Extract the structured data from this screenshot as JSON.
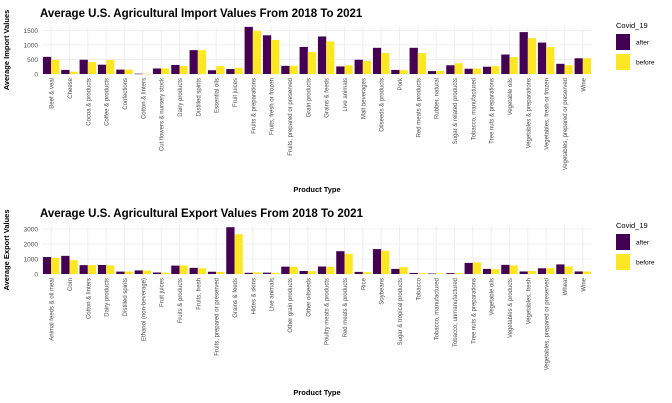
{
  "chart_data": [
    {
      "type": "bar",
      "title": "Average U.S. Agricultural Import Values From 2018 To 2021",
      "xlabel": "Product Type",
      "ylabel": "Average Import Values",
      "ylim": [
        0,
        1650
      ],
      "yticks": [
        0,
        500,
        1000,
        1500
      ],
      "grid": true,
      "legend": {
        "title": "Covid_19",
        "position": "right"
      },
      "categories": [
        "Beef & veal",
        "Cheese",
        "Cocoa & products",
        "Coffee & products",
        "Confections",
        "Cotton & linters",
        "Cut flowers & nursery stock",
        "Dairy products",
        "Distilled spirits",
        "Essential oils",
        "Fruit juices",
        "Fruits & preparations",
        "Fruits, fresh or frozen",
        "Fruits, prepared or preserved",
        "Grain products",
        "Grains & feeds",
        "Live animals",
        "Malt beverages",
        "Oilseeds & products",
        "Pork",
        "Red meats & products",
        "Rubber, natural",
        "Sugar & related products",
        "Tobacco, manufactured",
        "Tree nuts & preparations",
        "Vegetable oils",
        "Vegetables & preparations",
        "Vegetables, fresh or frozen",
        "Vegetables, prepared or preserved",
        "Wine"
      ],
      "series": [
        {
          "name": "after",
          "color": "#440154",
          "values": [
            590,
            140,
            490,
            320,
            150,
            10,
            190,
            310,
            820,
            130,
            170,
            1620,
            1330,
            280,
            930,
            1290,
            260,
            490,
            900,
            140,
            900,
            100,
            300,
            180,
            250,
            670,
            1440,
            1080,
            350,
            540
          ]
        },
        {
          "name": "before",
          "color": "#FDE725",
          "values": [
            490,
            80,
            410,
            480,
            150,
            10,
            190,
            270,
            820,
            270,
            210,
            1480,
            1170,
            280,
            750,
            1120,
            300,
            450,
            720,
            130,
            720,
            110,
            370,
            190,
            270,
            580,
            1230,
            930,
            300,
            540
          ]
        }
      ]
    },
    {
      "type": "bar",
      "title": "Average U.S. Agricultural Export Values From 2018 To 2021",
      "xlabel": "Product Type",
      "ylabel": "Average Export Values",
      "ylim": [
        0,
        3200
      ],
      "yticks": [
        0,
        1000,
        2000,
        3000
      ],
      "grid": true,
      "legend": {
        "title": "Covid_19",
        "position": "right"
      },
      "categories": [
        "Animal feeds & oil meal",
        "Corn",
        "Cotton & linters",
        "Dairy products",
        "Distilled spirits",
        "Ethanol (non-beverage)",
        "Fruit juices",
        "Fruits & products",
        "Fruits, fresh",
        "Fruits, prepared or preserved",
        "Grains & feeds",
        "Hides & skins",
        "Live animals",
        "Other grain products",
        "Other oilseeds",
        "Poultry meats & products",
        "Red meats & products",
        "Rice",
        "Soybeans",
        "Sugar & tropical products",
        "Tobacco",
        "Tobacco, manufactured",
        "Tobacco, unmanufactured",
        "Tree nuts & preparations",
        "Vegetable oils",
        "Vegetables & products",
        "Vegetables, fresh",
        "Vegetables, prepared or preserved",
        "Wheat",
        "Wine"
      ],
      "series": [
        {
          "name": "after",
          "color": "#440154",
          "values": [
            1130,
            1210,
            590,
            600,
            160,
            240,
            100,
            560,
            410,
            150,
            3120,
            80,
            90,
            490,
            200,
            500,
            1520,
            140,
            1660,
            340,
            70,
            30,
            60,
            740,
            340,
            610,
            170,
            380,
            640,
            170
          ]
        },
        {
          "name": "before",
          "color": "#FDE725",
          "values": [
            1070,
            920,
            590,
            570,
            160,
            230,
            90,
            560,
            380,
            140,
            2650,
            110,
            80,
            480,
            190,
            480,
            1340,
            120,
            1550,
            460,
            60,
            30,
            60,
            770,
            320,
            570,
            200,
            390,
            500,
            170
          ]
        }
      ]
    }
  ]
}
